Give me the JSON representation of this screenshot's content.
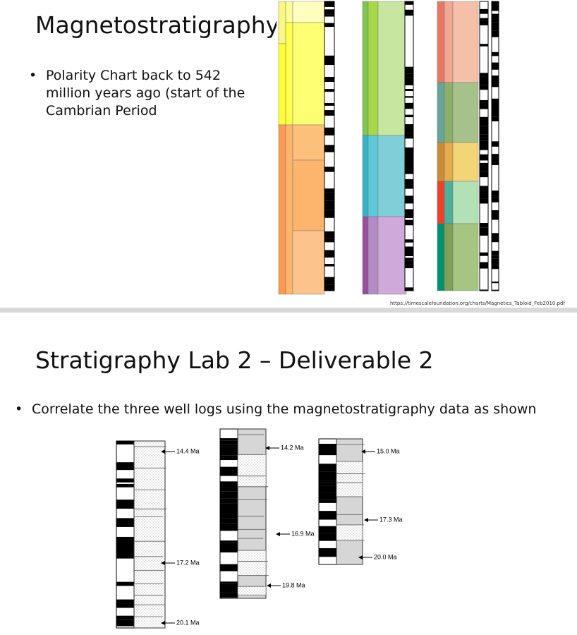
{
  "slide1": {
    "title": "Magnetostratigraphy",
    "bullet": "Polarity Chart back to 542 million years ago (start of the Cambrian Period",
    "source": "https://timescalefoundation.org/charts/Magnetics_Tabloid_Feb2010.pdf"
  },
  "slide2": {
    "title": "Stratigraphy Lab 2 – Deliverable 2",
    "bullet": "Correlate the three well logs using the magnetostratigraphy data as shown",
    "logs": [
      {
        "labels": [
          "14.4 Ma",
          "17.2 Ma",
          "20.1 Ma"
        ]
      },
      {
        "labels": [
          "14.2 Ma",
          "16.9 Ma",
          "19.8 Ma"
        ]
      },
      {
        "labels": [
          "15.0 Ma",
          "17.3 Ma",
          "20.0 Ma"
        ]
      }
    ]
  }
}
